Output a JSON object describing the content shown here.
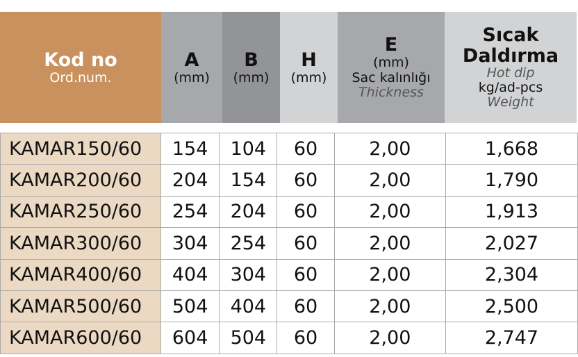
{
  "colors": {
    "code_header": "#c8915d",
    "code_cell": "#ecd9c4",
    "a": "#a7a8ab",
    "b": "#939497",
    "h": "#d2d3d5",
    "e": "#a7a8ab",
    "w": "#d2d3d5"
  },
  "header": {
    "code": {
      "title": "Kod no",
      "sub": "Ord.num."
    },
    "a": {
      "title": "A",
      "unit": "(mm)"
    },
    "b": {
      "title": "B",
      "unit": "(mm)"
    },
    "h": {
      "title": "H",
      "unit": "(mm)"
    },
    "e": {
      "title": "E",
      "unit": "(mm)",
      "tr": "Sac kalınlığı",
      "en": "Thickness"
    },
    "w": {
      "title1": "Sıcak",
      "title2": "Daldırma",
      "en1": "Hot dip",
      "unit": "kg/ad-pcs",
      "en2": "Weight"
    }
  },
  "rows": [
    [
      "KAMAR150/60",
      "154",
      "104",
      "60",
      "2,00",
      "1,668"
    ],
    [
      "KAMAR200/60",
      "204",
      "154",
      "60",
      "2,00",
      "1,790"
    ],
    [
      "KAMAR250/60",
      "254",
      "204",
      "60",
      "2,00",
      "1,913"
    ],
    [
      "KAMAR300/60",
      "304",
      "254",
      "60",
      "2,00",
      "2,027"
    ],
    [
      "KAMAR400/60",
      "404",
      "304",
      "60",
      "2,00",
      "2,304"
    ],
    [
      "KAMAR500/60",
      "504",
      "404",
      "60",
      "2,00",
      "2,500"
    ],
    [
      "KAMAR600/60",
      "604",
      "504",
      "60",
      "2,00",
      "2,747"
    ]
  ]
}
